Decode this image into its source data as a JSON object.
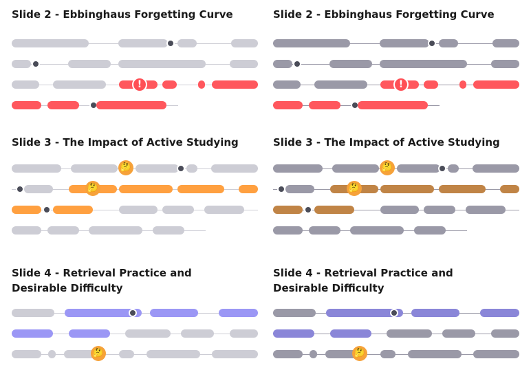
{
  "panels": [
    {
      "title": "Slide 2 - Ebbinghaus Forgetting Curve",
      "variant": "original"
    },
    {
      "title": "Slide 2 - Ebbinghaus Forgetting Curve",
      "variant": "tinted"
    },
    {
      "title": "Slide 3 - The Impact of Active Studying",
      "variant": "original"
    },
    {
      "title": "Slide 3 - The Impact of Active Studying",
      "variant": "tinted"
    },
    {
      "title": "Slide 4 -  Retrieval Practice and Desirable Difficulty",
      "variant": "original"
    },
    {
      "title": "Slide 4 -  Retrieval Practice and Desirable Difficulty",
      "variant": "tinted"
    }
  ],
  "icons": {
    "playhead": "playhead-dot-icon",
    "warning": "exclamation-warning-icon",
    "thinking": "thinking-face-icon"
  },
  "glyphs": {
    "warning": "!",
    "thinking": "🤔"
  },
  "colors": {
    "grey": "#cdcdd5",
    "grey_tinted": "#9a99a7",
    "red": "#ff575d",
    "orange": "#ffa040",
    "orange_tinted": "#c08446",
    "purple": "#9b97f5",
    "purple_tinted": "#8a86d8",
    "dot": "#4a4c58",
    "warning": "#ff4f55",
    "thinking": "#f6a23a"
  }
}
